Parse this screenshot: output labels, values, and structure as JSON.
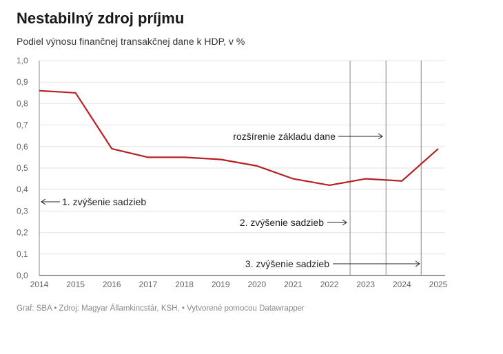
{
  "header": {
    "title": "Nestabilný zdroj príjmu",
    "subtitle": "Podiel výnosu finančnej transakčnej dane k HDP, v %"
  },
  "footer": {
    "text": "Graf: SBA • Zdroj: Magyar Államkincstár, KSH, • Vytvorené pomocou Datawrapper"
  },
  "chart_data": {
    "type": "line",
    "title": "Nestabilný zdroj príjmu",
    "subtitle": "Podiel výnosu finančnej transakčnej dane k HDP, v %",
    "x": [
      2014,
      2015,
      2016,
      2017,
      2018,
      2019,
      2020,
      2021,
      2022,
      2023,
      2024,
      2025
    ],
    "series": [
      {
        "values": [
          0.86,
          0.85,
          0.59,
          0.55,
          0.55,
          0.54,
          0.51,
          0.45,
          0.42,
          0.45,
          0.44,
          0.59
        ],
        "color": "#b81f24"
      }
    ],
    "xlim": [
      2014,
      2025
    ],
    "ylim": [
      0,
      1.0
    ],
    "yticks": [
      "0,0",
      "0,1",
      "0,2",
      "0,3",
      "0,4",
      "0,5",
      "0,6",
      "0,7",
      "0,8",
      "0,9",
      "1,0"
    ],
    "xticks": [
      "2014",
      "2015",
      "2016",
      "2017",
      "2018",
      "2019",
      "2020",
      "2021",
      "2022",
      "2023",
      "2024",
      "2025"
    ],
    "grid": true,
    "annotations": [
      {
        "label": "1. zvýšenie sadzieb",
        "x": 2014.0
      },
      {
        "label": "rozšírenie základu dane",
        "x": 2023.56
      },
      {
        "label": "2. zvýšenie sadzieb",
        "x": 2022.57
      },
      {
        "label": "3. zvýšenie sadzieb",
        "x": 2024.53
      }
    ]
  }
}
